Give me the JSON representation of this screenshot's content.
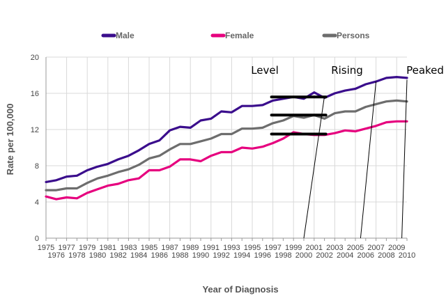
{
  "chart_data": {
    "type": "line",
    "x": [
      1975,
      1976,
      1977,
      1978,
      1979,
      1980,
      1981,
      1982,
      1983,
      1984,
      1985,
      1986,
      1987,
      1988,
      1989,
      1990,
      1991,
      1992,
      1993,
      1994,
      1995,
      1996,
      1997,
      1998,
      1999,
      2000,
      2001,
      2002,
      2003,
      2004,
      2005,
      2006,
      2007,
      2008,
      2009,
      2010
    ],
    "series": [
      {
        "name": "Male",
        "color": "#3a0d8c",
        "values": [
          6.2,
          6.4,
          6.8,
          6.9,
          7.5,
          7.9,
          8.2,
          8.7,
          9.1,
          9.7,
          10.4,
          10.8,
          11.9,
          12.3,
          12.2,
          13.0,
          13.2,
          14.0,
          13.9,
          14.6,
          14.6,
          14.7,
          15.2,
          15.4,
          15.6,
          15.4,
          16.1,
          15.5,
          16.0,
          16.3,
          16.5,
          17.0,
          17.3,
          17.7,
          17.8,
          17.7
        ]
      },
      {
        "name": "Female",
        "color": "#e6007e",
        "values": [
          4.6,
          4.3,
          4.5,
          4.4,
          5.0,
          5.4,
          5.8,
          6.0,
          6.4,
          6.6,
          7.5,
          7.5,
          7.9,
          8.7,
          8.7,
          8.5,
          9.1,
          9.5,
          9.5,
          10.0,
          9.9,
          10.1,
          10.5,
          11.0,
          11.7,
          11.5,
          11.4,
          11.4,
          11.6,
          11.9,
          11.8,
          12.1,
          12.4,
          12.8,
          12.9,
          12.9
        ]
      },
      {
        "name": "Persons",
        "color": "#6d6d6d",
        "values": [
          5.3,
          5.3,
          5.5,
          5.5,
          6.1,
          6.6,
          6.9,
          7.3,
          7.6,
          8.1,
          8.8,
          9.1,
          9.8,
          10.4,
          10.4,
          10.7,
          11.0,
          11.5,
          11.5,
          12.1,
          12.1,
          12.2,
          12.7,
          13.0,
          13.5,
          13.3,
          13.6,
          13.2,
          13.8,
          14.0,
          14.0,
          14.5,
          14.8,
          15.1,
          15.2,
          15.1
        ]
      }
    ],
    "yticks": [
      0,
      4,
      8,
      12,
      16,
      20
    ],
    "ylim": [
      0,
      20
    ],
    "xlim": [
      1975,
      2010
    ],
    "xlabel": "Year of Diagnosis",
    "ylabel": "Rate per 100,000",
    "grid": true,
    "legend_position": "top",
    "annotations": [
      {
        "label": "Level",
        "arrow_from_year": 2000,
        "arrow_to_year": 2002,
        "arrow_to_value": 15.7
      },
      {
        "label": "Rising",
        "arrow_from_year": 2005.5,
        "arrow_to_year": 2007,
        "arrow_to_value": 17.3
      },
      {
        "label": "Peaked",
        "arrow_from_year": 2009.5,
        "arrow_to_year": 2010,
        "arrow_to_value": 17.5
      }
    ],
    "highlight_bands": [
      {
        "year_from": 1997,
        "year_to": 2002,
        "value": 15.6
      },
      {
        "year_from": 1997,
        "year_to": 2002,
        "value": 13.6
      },
      {
        "year_from": 1997,
        "year_to": 2002,
        "value": 11.5
      }
    ]
  }
}
